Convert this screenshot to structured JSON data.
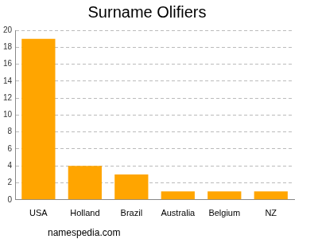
{
  "chart_data": {
    "type": "bar",
    "title": "Surname Olifiers",
    "categories": [
      "USA",
      "Holland",
      "Brazil",
      "Australia",
      "Belgium",
      "NZ"
    ],
    "values": [
      19,
      4,
      3,
      1,
      1,
      1
    ],
    "color": "#ffa500",
    "ylim": [
      0,
      20
    ],
    "yticks": [
      0,
      2,
      4,
      6,
      8,
      10,
      12,
      14,
      16,
      18,
      20
    ],
    "grid": true,
    "annotations": [
      "namespedia.com"
    ]
  }
}
